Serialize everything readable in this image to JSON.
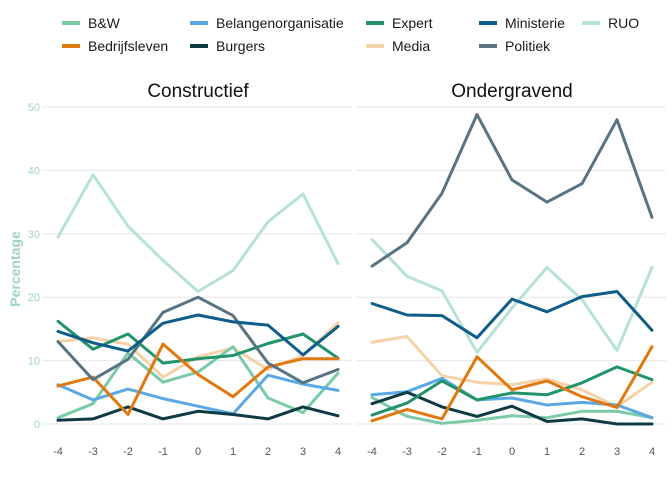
{
  "chart_data": {
    "type": "line",
    "ylabel": "Percentage",
    "ylim": [
      0,
      50
    ],
    "yticks": [
      0,
      10,
      20,
      30,
      40,
      50
    ],
    "x": [
      -4,
      -3,
      -2,
      -1,
      0,
      1,
      2,
      3,
      4
    ],
    "xtick_labels": [
      "-4",
      "-3",
      "-2",
      "-1",
      "0",
      "1",
      "2",
      "3",
      "4"
    ],
    "grid": "horizontal",
    "legend_position": "top",
    "series_styles": [
      {
        "name": "B&W",
        "color": "#7ccba8"
      },
      {
        "name": "Bedrijfsleven",
        "color": "#e07a10"
      },
      {
        "name": "Belangenorganisatie",
        "color": "#5aa9e6"
      },
      {
        "name": "Burgers",
        "color": "#0e3b43"
      },
      {
        "name": "Expert",
        "color": "#21946a"
      },
      {
        "name": "Media",
        "color": "#f6d2a8"
      },
      {
        "name": "Ministerie",
        "color": "#0f5d8a"
      },
      {
        "name": "Politiek",
        "color": "#587382"
      },
      {
        "name": "RUO",
        "color": "#b6e3d6"
      }
    ],
    "panels": [
      {
        "title": "Constructief",
        "series": [
          {
            "name": "RUO",
            "values": [
              29.5,
              39.3,
              31.2,
              25.8,
              20.9,
              24.2,
              31.9,
              36.3,
              25.3
            ]
          },
          {
            "name": "Media",
            "values": [
              13.0,
              13.6,
              12.6,
              7.4,
              10.6,
              12.0,
              8.6,
              10.8,
              16.0
            ]
          },
          {
            "name": "B&W",
            "values": [
              1.0,
              3.2,
              11.2,
              6.6,
              8.2,
              12.2,
              4.1,
              1.8,
              8.0
            ]
          },
          {
            "name": "Belangenorganisatie",
            "values": [
              6.2,
              3.8,
              5.5,
              4.0,
              2.8,
              1.6,
              7.7,
              6.3,
              5.3
            ]
          },
          {
            "name": "Burgers",
            "values": [
              0.6,
              0.8,
              2.7,
              0.8,
              2.0,
              1.5,
              0.8,
              2.7,
              1.3
            ]
          },
          {
            "name": "Expert",
            "values": [
              16.2,
              11.8,
              14.2,
              9.6,
              10.3,
              10.8,
              12.7,
              14.2,
              10.4
            ]
          },
          {
            "name": "Bedrijfsleven",
            "values": [
              6.0,
              7.4,
              1.5,
              12.6,
              7.8,
              4.3,
              9.0,
              10.3,
              10.3
            ]
          },
          {
            "name": "Politiek",
            "values": [
              13.0,
              7.0,
              10.2,
              17.6,
              20.0,
              17.1,
              9.6,
              6.5,
              8.6
            ]
          },
          {
            "name": "Ministerie",
            "values": [
              14.6,
              12.8,
              11.5,
              15.9,
              17.2,
              16.1,
              15.6,
              10.9,
              15.4
            ]
          }
        ]
      },
      {
        "title": "Ondergravend",
        "series": [
          {
            "name": "RUO",
            "values": [
              29.1,
              23.3,
              21.0,
              11.3,
              18.3,
              24.7,
              19.6,
              11.6,
              24.7
            ]
          },
          {
            "name": "Media",
            "values": [
              12.9,
              13.8,
              7.6,
              6.6,
              6.2,
              7.1,
              5.4,
              2.7,
              6.6
            ]
          },
          {
            "name": "B&W",
            "values": [
              4.2,
              1.2,
              0.1,
              0.6,
              1.3,
              1.0,
              2.0,
              2.0,
              1.0
            ]
          },
          {
            "name": "Belangenorganisatie",
            "values": [
              4.6,
              5.1,
              7.2,
              3.8,
              4.1,
              3.0,
              3.4,
              3.0,
              1.0
            ]
          },
          {
            "name": "Burgers",
            "values": [
              3.2,
              5.0,
              2.7,
              1.2,
              2.8,
              0.4,
              0.8,
              0.0,
              0.0
            ]
          },
          {
            "name": "Expert",
            "values": [
              1.4,
              3.3,
              6.8,
              3.8,
              4.9,
              4.6,
              6.5,
              9.0,
              7.0
            ]
          },
          {
            "name": "Bedrijfsleven",
            "values": [
              0.5,
              2.3,
              0.8,
              10.6,
              5.4,
              6.8,
              4.3,
              2.6,
              12.2
            ]
          },
          {
            "name": "Politiek",
            "values": [
              24.9,
              28.6,
              36.4,
              48.8,
              38.5,
              35.0,
              37.9,
              48.0,
              32.6
            ]
          },
          {
            "name": "Ministerie",
            "values": [
              19.0,
              17.2,
              17.1,
              13.6,
              19.7,
              17.7,
              20.1,
              20.9,
              14.8
            ]
          }
        ]
      }
    ]
  }
}
